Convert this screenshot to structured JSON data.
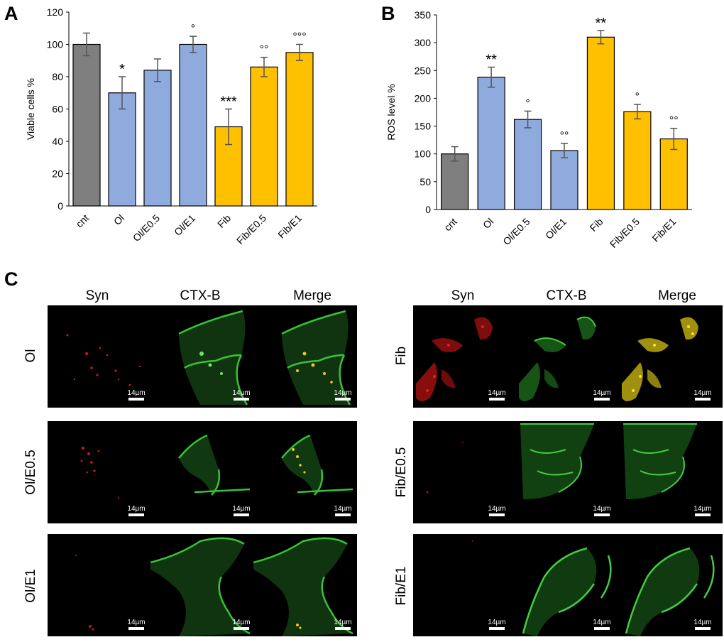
{
  "panels": {
    "a": "A",
    "b": "B",
    "c": "C"
  },
  "chart_data": [
    {
      "type": "bar",
      "panel": "A",
      "categories": [
        "cnt",
        "Ol",
        "Ol/E0.5",
        "Ol/E1",
        "Fib",
        "Fib/E0.5",
        "Fib/E1"
      ],
      "values": [
        100,
        70,
        84,
        100,
        49,
        86,
        95
      ],
      "errors": [
        7,
        10,
        7,
        5,
        11,
        6,
        5
      ],
      "annotations": [
        "",
        "*",
        "",
        "°",
        "***",
        "°°",
        "°°°"
      ],
      "ylabel": "Viable cells %",
      "ylim": [
        0,
        120
      ],
      "yticks": [
        0,
        20,
        40,
        60,
        80,
        100,
        120
      ],
      "colors": [
        "#7f7f7f",
        "#8faadc",
        "#8faadc",
        "#8faadc",
        "#ffc000",
        "#ffc000",
        "#ffc000"
      ],
      "grid": false
    },
    {
      "type": "bar",
      "panel": "B",
      "categories": [
        "cnt",
        "Ol",
        "Ol/E0.5",
        "Ol/E1",
        "Fib",
        "Fib/E0.5",
        "Fib/E1"
      ],
      "values": [
        100,
        238,
        162,
        106,
        310,
        176,
        127
      ],
      "errors": [
        13,
        18,
        15,
        13,
        12,
        13,
        19
      ],
      "annotations": [
        "",
        "**",
        "°",
        "°°",
        "**",
        "°",
        "°°"
      ],
      "ylabel": "ROS level %",
      "ylim": [
        0,
        350
      ],
      "yticks": [
        0,
        50,
        100,
        150,
        200,
        250,
        300,
        350
      ],
      "colors": [
        "#7f7f7f",
        "#8faadc",
        "#8faadc",
        "#8faadc",
        "#ffc000",
        "#ffc000",
        "#ffc000"
      ],
      "grid": false
    }
  ],
  "micro": {
    "headers": [
      "Syn",
      "CTX-B",
      "Merge"
    ],
    "scale_label": "14µm",
    "left_rows": [
      "Ol",
      "Ol/E0.5",
      "Ol/E1"
    ],
    "right_rows": [
      "Fib",
      "Fib/E0.5",
      "Fib/E1"
    ]
  }
}
